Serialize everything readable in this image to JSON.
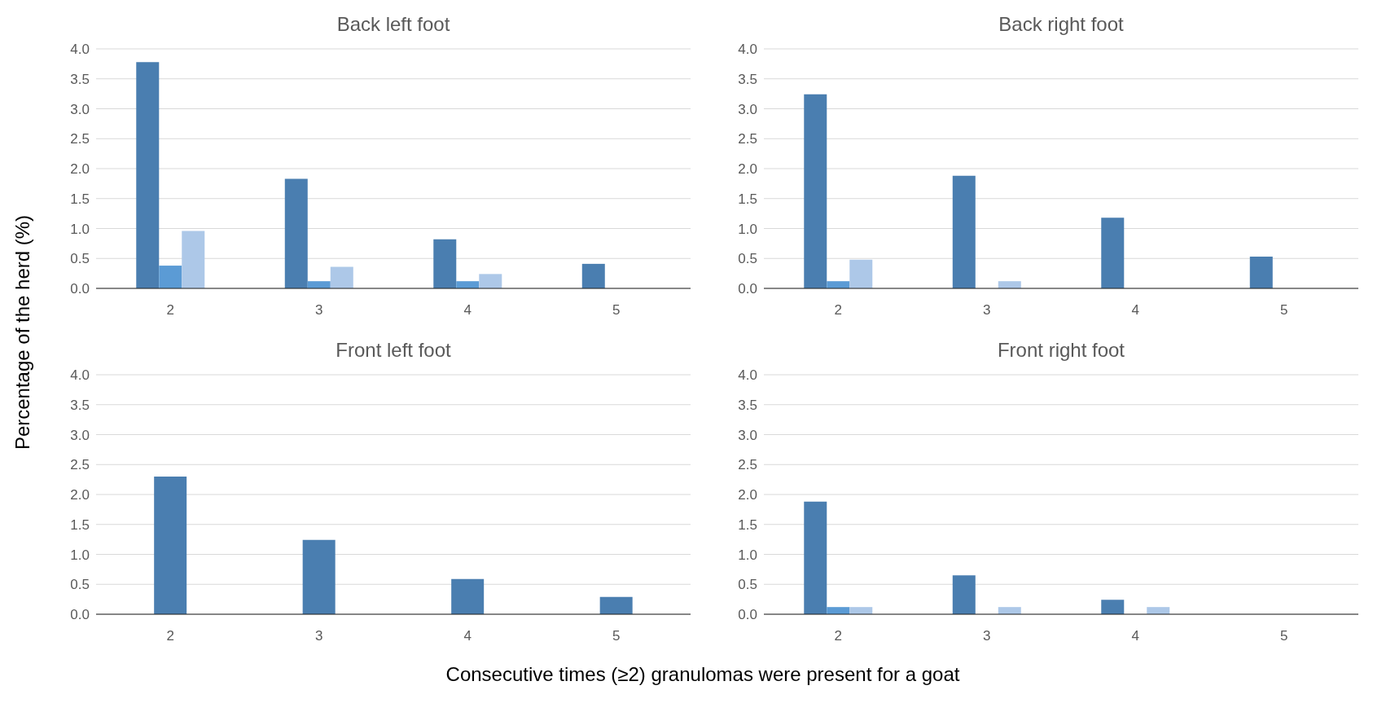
{
  "chart_data": [
    {
      "type": "bar",
      "title": "Back left foot",
      "ylabel": "Percentage of the herd (%)",
      "categories": [
        "2",
        "3",
        "4",
        "5"
      ],
      "series": [
        {
          "color": "#4a7eb0",
          "values": [
            3.78,
            1.83,
            0.82,
            0.41
          ]
        },
        {
          "color": "#5b9bd5",
          "values": [
            0.38,
            0.12,
            0.12,
            0
          ]
        },
        {
          "color": "#adc8e8",
          "values": [
            0.96,
            0.36,
            0.24,
            0
          ]
        }
      ],
      "ylim": [
        0,
        4
      ],
      "yticks": [
        {
          "value": 0,
          "label": "0.0"
        },
        {
          "value": 0.5,
          "label": "0.5"
        },
        {
          "value": 1,
          "label": "1.0"
        },
        {
          "value": 1.5,
          "label": "1.5"
        },
        {
          "value": 2,
          "label": "2.0"
        },
        {
          "value": 2.5,
          "label": "2.5"
        },
        {
          "value": 3,
          "label": "3.0"
        },
        {
          "value": 3.5,
          "label": "3.5"
        },
        {
          "value": 4,
          "label": "4.0"
        }
      ],
      "grid": "y",
      "legend": false
    },
    {
      "type": "bar",
      "title": "Back right foot",
      "categories": [
        "2",
        "3",
        "4",
        "5"
      ],
      "series": [
        {
          "color": "#4a7eb0",
          "values": [
            3.24,
            1.88,
            1.18,
            0.53
          ]
        },
        {
          "color": "#5b9bd5",
          "values": [
            0.12,
            0,
            0,
            0
          ]
        },
        {
          "color": "#adc8e8",
          "values": [
            0.48,
            0.12,
            0,
            0
          ]
        }
      ],
      "ylim": [
        0,
        4
      ],
      "yticks": [
        {
          "value": 0,
          "label": "0.0"
        },
        {
          "value": 0.5,
          "label": "0.5"
        },
        {
          "value": 1,
          "label": "1.0"
        },
        {
          "value": 1.5,
          "label": "1.5"
        },
        {
          "value": 2,
          "label": "2.0"
        },
        {
          "value": 2.5,
          "label": "2.5"
        },
        {
          "value": 3,
          "label": "3.0"
        },
        {
          "value": 3.5,
          "label": "3.5"
        },
        {
          "value": 4,
          "label": "4.0"
        }
      ],
      "grid": "y",
      "legend": false
    },
    {
      "type": "bar",
      "title": "Front left foot",
      "xlabel": "Consecutive times (≥2) granulomas were present for a goat",
      "categories": [
        "2",
        "3",
        "4",
        "5"
      ],
      "series": [
        {
          "color": "#4a7eb0",
          "values": [
            2.3,
            1.24,
            0.59,
            0.29
          ]
        }
      ],
      "ylim": [
        0,
        4
      ],
      "yticks": [
        {
          "value": 0,
          "label": "0.0"
        },
        {
          "value": 0.5,
          "label": "0.5"
        },
        {
          "value": 1,
          "label": "1.0"
        },
        {
          "value": 1.5,
          "label": "1.5"
        },
        {
          "value": 2,
          "label": "2.0"
        },
        {
          "value": 2.5,
          "label": "2.5"
        },
        {
          "value": 3,
          "label": "3.0"
        },
        {
          "value": 3.5,
          "label": "3.5"
        },
        {
          "value": 4,
          "label": "4.0"
        }
      ],
      "grid": "y",
      "legend": false
    },
    {
      "type": "bar",
      "title": "Front right foot",
      "categories": [
        "2",
        "3",
        "4",
        "5"
      ],
      "series": [
        {
          "color": "#4a7eb0",
          "values": [
            1.88,
            0.65,
            0.24,
            0
          ]
        },
        {
          "color": "#5b9bd5",
          "values": [
            0.12,
            0,
            0,
            0
          ]
        },
        {
          "color": "#adc8e8",
          "values": [
            0.12,
            0.12,
            0.12,
            0
          ]
        }
      ],
      "ylim": [
        0,
        4
      ],
      "yticks": [
        {
          "value": 0,
          "label": "0.0"
        },
        {
          "value": 0.5,
          "label": "0.5"
        },
        {
          "value": 1,
          "label": "1.0"
        },
        {
          "value": 1.5,
          "label": "1.5"
        },
        {
          "value": 2,
          "label": "2.0"
        },
        {
          "value": 2.5,
          "label": "2.5"
        },
        {
          "value": 3,
          "label": "3.0"
        },
        {
          "value": 3.5,
          "label": "3.5"
        },
        {
          "value": 4,
          "label": "4.0"
        }
      ],
      "grid": "y",
      "legend": false
    }
  ]
}
